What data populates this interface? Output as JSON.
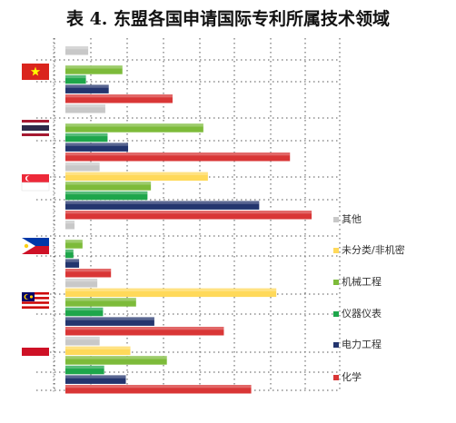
{
  "chart_data": {
    "type": "bar",
    "orientation": "horizontal",
    "title": "表 4. 东盟各国申请国际专利所属技术领域",
    "categories": [
      "Vietnam",
      "Thailand",
      "Singapore",
      "Philippines",
      "Malaysia",
      "Indonesia"
    ],
    "category_icons": [
      "flag-vietnam",
      "flag-thailand",
      "flag-singapore",
      "flag-philippines",
      "flag-malaysia",
      "flag-indonesia"
    ],
    "axis_labels_shown": false,
    "grid": true,
    "legend_position": "right",
    "series": [
      {
        "name": "其他",
        "color": "#c8c8c8",
        "values": [
          2,
          3.5,
          3,
          0.8,
          2.8,
          3
        ]
      },
      {
        "name": "未分类/非机密",
        "color": "#ffd95a",
        "values": [
          0,
          0,
          12.5,
          0,
          18.5,
          5.7
        ]
      },
      {
        "name": "机械工程",
        "color": "#7dbb3a",
        "values": [
          5,
          12.1,
          7.5,
          1.5,
          6.2,
          8.9
        ]
      },
      {
        "name": "仪器仪表",
        "color": "#1ea64b",
        "values": [
          1.8,
          3.7,
          7.2,
          0.7,
          3.3,
          3.4
        ]
      },
      {
        "name": "电力工程",
        "color": "#23356e",
        "values": [
          3.8,
          5.5,
          17,
          1.2,
          7.8,
          5.3
        ]
      },
      {
        "name": "化学",
        "color": "#d93636",
        "values": [
          9.4,
          19.7,
          21.6,
          4,
          13.9,
          16.3
        ]
      }
    ],
    "xlim": [
      0,
      24
    ]
  }
}
